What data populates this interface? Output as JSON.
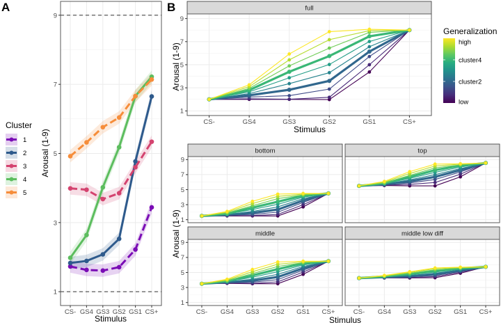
{
  "figure": {
    "panel_labels": [
      "A",
      "B"
    ]
  },
  "chart_data": [
    {
      "type": "line",
      "panel": "A",
      "xlabel": "Stimulus",
      "ylabel": "Arousal (1-9)",
      "categories": [
        "CS-",
        "GS4",
        "GS3",
        "GS2",
        "GS1",
        "CS+"
      ],
      "ylim": [
        0.6,
        9.4
      ],
      "yticks": [
        1,
        3,
        5,
        7,
        9
      ],
      "reference_lines": [
        1,
        9
      ],
      "grid": true,
      "legend": {
        "title": "Cluster",
        "position": "left"
      },
      "series": [
        {
          "name": "1",
          "color": "#7a0cb5",
          "dashed": true,
          "values": [
            1.73,
            1.63,
            1.61,
            1.71,
            2.22,
            3.44
          ]
        },
        {
          "name": "2",
          "color": "#2e5a8c",
          "dashed": false,
          "values": [
            1.83,
            1.89,
            2.08,
            2.53,
            4.77,
            6.65
          ]
        },
        {
          "name": "3",
          "color": "#d4436f",
          "dashed": true,
          "values": [
            3.99,
            3.95,
            3.68,
            3.85,
            4.6,
            5.34
          ]
        },
        {
          "name": "4",
          "color": "#5cbd5e",
          "dashed": false,
          "values": [
            1.98,
            2.64,
            4.02,
            5.18,
            6.66,
            7.22
          ]
        },
        {
          "name": "5",
          "color": "#f68d3a",
          "dashed": true,
          "values": [
            4.92,
            5.32,
            5.76,
            6.04,
            6.66,
            7.14
          ]
        }
      ]
    },
    {
      "type": "line",
      "panel": "B",
      "xlabel": "Stimulus",
      "ylabel": "Arousal (1-9)",
      "categories": [
        "CS-",
        "GS4",
        "GS3",
        "GS2",
        "GS1",
        "CS+"
      ],
      "ylim": [
        0.6,
        9.4
      ],
      "yticks": [
        1,
        3,
        5,
        7,
        9
      ],
      "grid": true,
      "legend": {
        "title": "Generalization",
        "position": "right",
        "type": "colorbar",
        "colormap": "viridis",
        "labels": [
          {
            "text": "high",
            "level": 1.0
          },
          {
            "text": "cluster4",
            "level": 0.667
          },
          {
            "text": "cluster2",
            "level": 0.333
          },
          {
            "text": "low",
            "level": 0.0
          }
        ]
      },
      "line_levels": [
        1.0,
        0.889,
        0.778,
        0.667,
        0.556,
        0.444,
        0.333,
        0.222,
        0.111,
        0.0
      ],
      "thick_levels": [
        0.667,
        0.333
      ],
      "facets": [
        {
          "name": "full",
          "series": [
            [
              2.0,
              3.26,
              5.93,
              7.86,
              8.07,
              8.0
            ],
            [
              2.0,
              3.1,
              5.42,
              7.17,
              7.95,
              8.0
            ],
            [
              2.0,
              2.95,
              4.9,
              6.44,
              7.8,
              8.0
            ],
            [
              2.0,
              2.8,
              4.39,
              5.75,
              7.46,
              8.0
            ],
            [
              2.0,
              2.65,
              3.87,
              5.02,
              7.01,
              8.0
            ],
            [
              2.0,
              2.5,
              3.36,
              4.31,
              6.56,
              8.0
            ],
            [
              2.0,
              2.35,
              2.83,
              3.6,
              6.14,
              8.0
            ],
            [
              2.0,
              2.2,
              2.32,
              2.89,
              5.71,
              8.0
            ],
            [
              2.0,
              2.05,
              2.01,
              2.18,
              5.0,
              8.0
            ],
            [
              2.0,
              2.0,
              2.0,
              1.98,
              4.37,
              8.0
            ]
          ]
        },
        {
          "name": "bottom",
          "series": [
            [
              1.5,
              2.1,
              3.45,
              4.4,
              4.5,
              4.5
            ],
            [
              1.5,
              2.0,
              3.15,
              4.1,
              4.4,
              4.5
            ],
            [
              1.5,
              1.9,
              2.85,
              3.8,
              4.3,
              4.5
            ],
            [
              1.5,
              1.8,
              2.6,
              3.4,
              4.2,
              4.5
            ],
            [
              1.5,
              1.75,
              2.35,
              3.05,
              4.0,
              4.5
            ],
            [
              1.5,
              1.7,
              2.1,
              2.7,
              3.8,
              4.5
            ],
            [
              1.5,
              1.65,
              1.9,
              2.35,
              3.55,
              4.5
            ],
            [
              1.5,
              1.6,
              1.7,
              2.0,
              3.3,
              4.5
            ],
            [
              1.5,
              1.55,
              1.55,
              1.7,
              3.0,
              4.5
            ],
            [
              1.5,
              1.5,
              1.5,
              1.5,
              2.7,
              4.5
            ]
          ]
        },
        {
          "name": "top",
          "series": [
            [
              5.5,
              6.1,
              7.4,
              8.4,
              8.45,
              8.55
            ],
            [
              5.5,
              6.0,
              7.15,
              8.15,
              8.4,
              8.55
            ],
            [
              5.5,
              5.9,
              6.9,
              7.9,
              8.3,
              8.55
            ],
            [
              5.5,
              5.85,
              6.7,
              7.6,
              8.2,
              8.55
            ],
            [
              5.5,
              5.8,
              6.5,
              7.3,
              8.0,
              8.55
            ],
            [
              5.5,
              5.75,
              6.3,
              7.0,
              7.8,
              8.55
            ],
            [
              5.5,
              5.7,
              6.1,
              6.7,
              7.6,
              8.55
            ],
            [
              5.5,
              5.65,
              5.9,
              6.35,
              7.35,
              8.55
            ],
            [
              5.5,
              5.6,
              5.7,
              5.95,
              7.05,
              8.55
            ],
            [
              5.5,
              5.55,
              5.5,
              5.5,
              6.7,
              8.55
            ]
          ]
        },
        {
          "name": "middle",
          "series": [
            [
              3.5,
              4.1,
              5.4,
              6.4,
              6.5,
              6.5
            ],
            [
              3.5,
              4.0,
              5.1,
              6.1,
              6.4,
              6.5
            ],
            [
              3.5,
              3.9,
              4.85,
              5.8,
              6.3,
              6.5
            ],
            [
              3.5,
              3.85,
              4.6,
              5.45,
              6.2,
              6.5
            ],
            [
              3.5,
              3.8,
              4.35,
              5.1,
              6.0,
              6.5
            ],
            [
              3.5,
              3.75,
              4.1,
              4.75,
              5.8,
              6.5
            ],
            [
              3.5,
              3.7,
              3.9,
              4.4,
              5.55,
              6.5
            ],
            [
              3.5,
              3.65,
              3.7,
              4.05,
              5.3,
              6.5
            ],
            [
              3.5,
              3.6,
              3.55,
              3.75,
              5.05,
              6.5
            ],
            [
              3.5,
              3.55,
              3.5,
              3.5,
              4.75,
              6.5
            ]
          ]
        },
        {
          "name": "middle low diff",
          "series": [
            [
              4.25,
              4.6,
              5.1,
              5.6,
              5.7,
              5.75
            ],
            [
              4.25,
              4.55,
              5.0,
              5.5,
              5.65,
              5.75
            ],
            [
              4.25,
              4.5,
              4.9,
              5.35,
              5.6,
              5.75
            ],
            [
              4.25,
              4.48,
              4.8,
              5.2,
              5.55,
              5.75
            ],
            [
              4.25,
              4.45,
              4.7,
              5.05,
              5.45,
              5.75
            ],
            [
              4.25,
              4.42,
              4.6,
              4.9,
              5.35,
              5.75
            ],
            [
              4.25,
              4.38,
              4.5,
              4.75,
              5.25,
              5.75
            ],
            [
              4.25,
              4.35,
              4.42,
              4.6,
              5.15,
              5.75
            ],
            [
              4.25,
              4.3,
              4.33,
              4.45,
              5.05,
              5.75
            ],
            [
              4.25,
              4.27,
              4.27,
              4.3,
              4.9,
              5.75
            ]
          ]
        }
      ]
    }
  ]
}
